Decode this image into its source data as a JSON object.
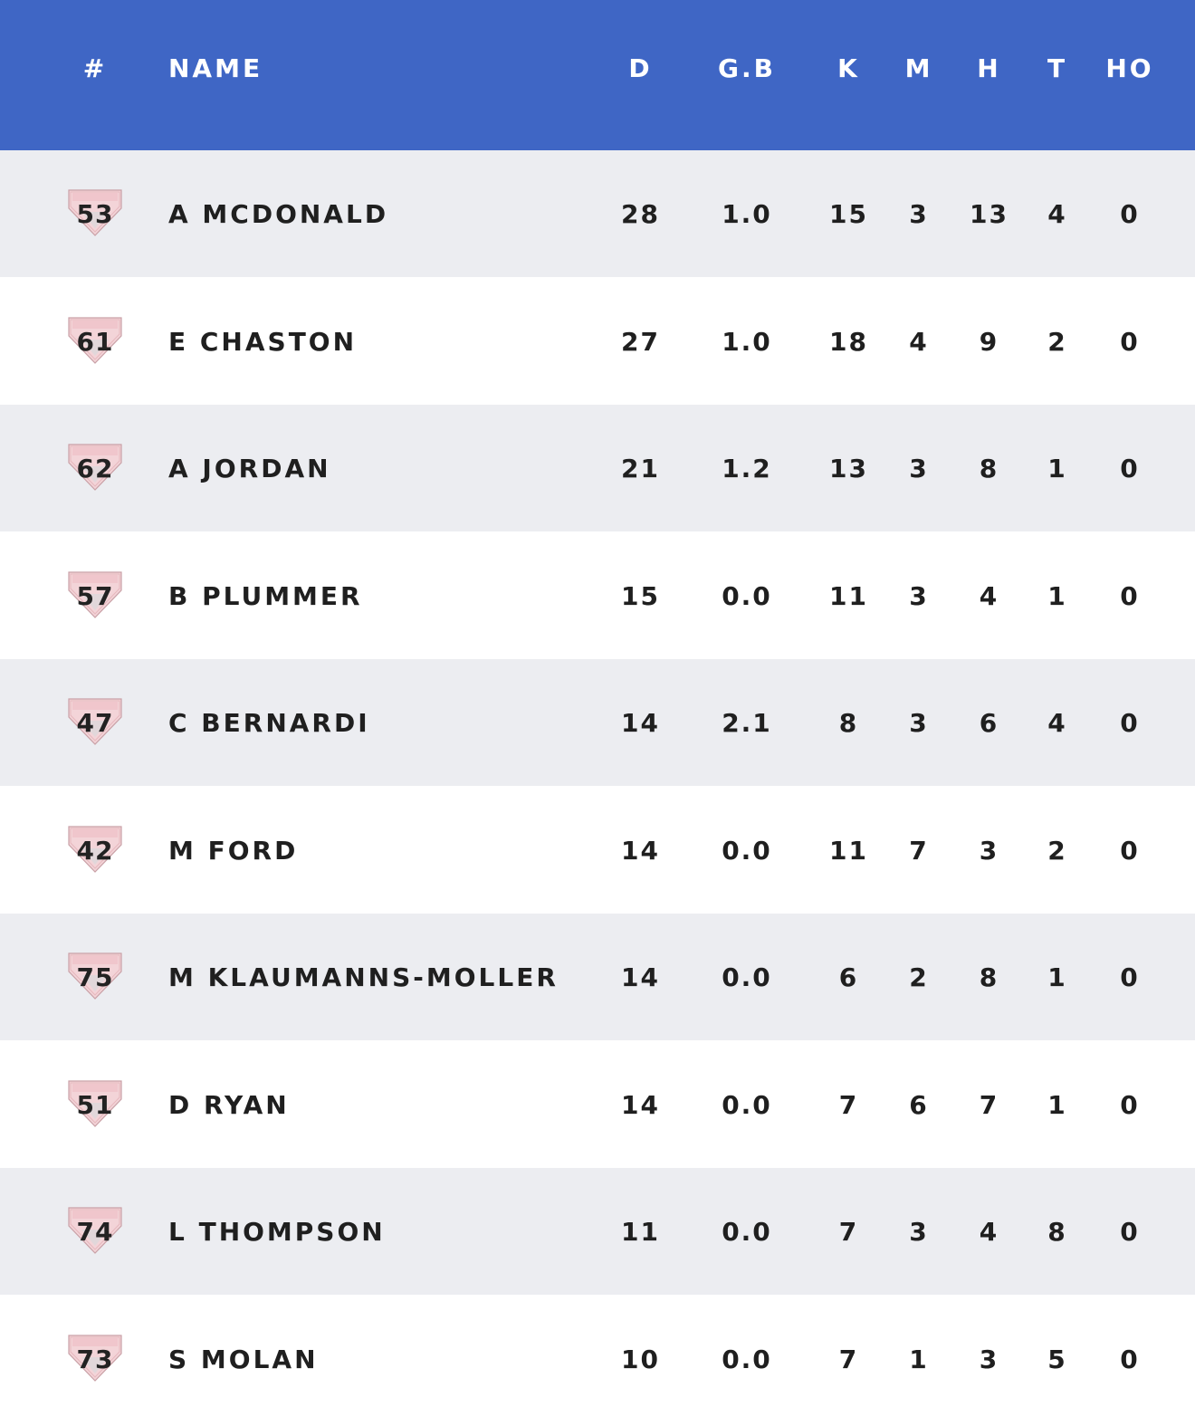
{
  "header": {
    "num": "#",
    "name": "NAME",
    "d": "D",
    "gb": "G.B",
    "k": "K",
    "m": "M",
    "h": "H",
    "t": "T",
    "ho": "HO"
  },
  "colors": {
    "header_bg": "#3f66c5",
    "row_alt_bg": "#ecedf1",
    "row_bg": "#ffffff",
    "badge_red": "#e3a3aa"
  },
  "badge_icon": "club-guernsey-icon",
  "rows": [
    {
      "num": "53",
      "name": "A MCDONALD",
      "d": "28",
      "gb": "1.0",
      "k": "15",
      "m": "3",
      "h": "13",
      "t": "4",
      "ho": "0"
    },
    {
      "num": "61",
      "name": "E CHASTON",
      "d": "27",
      "gb": "1.0",
      "k": "18",
      "m": "4",
      "h": "9",
      "t": "2",
      "ho": "0"
    },
    {
      "num": "62",
      "name": "A JORDAN",
      "d": "21",
      "gb": "1.2",
      "k": "13",
      "m": "3",
      "h": "8",
      "t": "1",
      "ho": "0"
    },
    {
      "num": "57",
      "name": "B PLUMMER",
      "d": "15",
      "gb": "0.0",
      "k": "11",
      "m": "3",
      "h": "4",
      "t": "1",
      "ho": "0"
    },
    {
      "num": "47",
      "name": "C BERNARDI",
      "d": "14",
      "gb": "2.1",
      "k": "8",
      "m": "3",
      "h": "6",
      "t": "4",
      "ho": "0"
    },
    {
      "num": "42",
      "name": "M FORD",
      "d": "14",
      "gb": "0.0",
      "k": "11",
      "m": "7",
      "h": "3",
      "t": "2",
      "ho": "0"
    },
    {
      "num": "75",
      "name": "M KLAUMANNS-MOLLER",
      "d": "14",
      "gb": "0.0",
      "k": "6",
      "m": "2",
      "h": "8",
      "t": "1",
      "ho": "0"
    },
    {
      "num": "51",
      "name": "D RYAN",
      "d": "14",
      "gb": "0.0",
      "k": "7",
      "m": "6",
      "h": "7",
      "t": "1",
      "ho": "0"
    },
    {
      "num": "74",
      "name": "L THOMPSON",
      "d": "11",
      "gb": "0.0",
      "k": "7",
      "m": "3",
      "h": "4",
      "t": "8",
      "ho": "0"
    },
    {
      "num": "73",
      "name": "S MOLAN",
      "d": "10",
      "gb": "0.0",
      "k": "7",
      "m": "1",
      "h": "3",
      "t": "5",
      "ho": "0"
    }
  ]
}
